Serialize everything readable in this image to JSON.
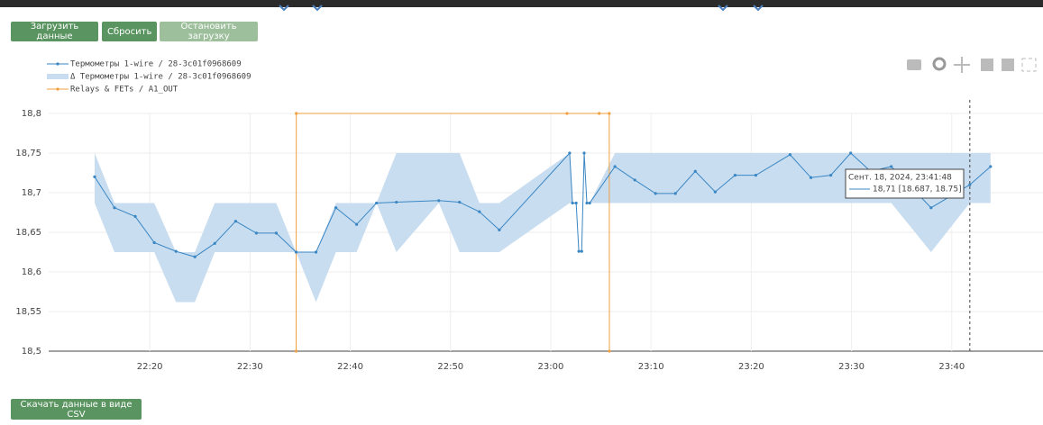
{
  "buttons": [
    "Загрузить данные",
    "Сбросить",
    "Остановить загрузку"
  ],
  "download_button": "Скачать данные в виде CSV",
  "tooltip": {
    "title": "Сент. 18, 2024, 23:41:48",
    "text": "18,71 [18.687, 18.75]"
  },
  "chart_data": {
    "type": "line",
    "xlim": [
      "22:09:55",
      "23:49:06"
    ],
    "xticks": [
      "22:20",
      "22:30",
      "22:40",
      "22:50",
      "23:00",
      "23:10",
      "23:20",
      "23:30",
      "23:40"
    ],
    "ylim": [
      18.5,
      18.8
    ],
    "yticks": [
      {
        "value": 18.5,
        "label": "18,5"
      },
      {
        "value": 18.55,
        "label": "18,55"
      },
      {
        "value": 18.6,
        "label": "18,6"
      },
      {
        "value": 18.65,
        "label": "18,65"
      },
      {
        "value": 18.7,
        "label": "18,7"
      },
      {
        "value": 18.75,
        "label": "18,75"
      },
      {
        "value": 18.8,
        "label": "18,8"
      }
    ],
    "y2lim": [
      0,
      1
    ],
    "grid": true,
    "series": [
      {
        "name": "Термометры 1-wire / 28-3c01f0968609",
        "color": "#3a87c4",
        "x": [
          "22:14:30",
          "22:16:29",
          "22:18:33",
          "22:20:27",
          "22:22:37",
          "22:24:30",
          "22:26:29",
          "22:28:34",
          "22:30:38",
          "22:32:37",
          "22:34:36",
          "22:36:35",
          "22:38:34",
          "22:40:38",
          "22:42:37",
          "22:44:36",
          "22:48:50",
          "22:50:54",
          "22:52:53",
          "22:54:52",
          "23:01:53",
          "23:02:10",
          "23:02:32",
          "23:02:48",
          "23:03:05",
          "23:03:20",
          "23:03:36",
          "23:03:53",
          "23:06:24",
          "23:08:23",
          "23:10:27",
          "23:12:26",
          "23:14:25",
          "23:16:24",
          "23:18:23",
          "23:20:27",
          "23:23:52",
          "23:25:57",
          "23:27:56",
          "23:29:55",
          "23:31:54",
          "23:33:58",
          "23:37:56",
          "23:41:48",
          "23:43:52"
        ],
        "values": [
          18.72,
          18.681,
          18.67,
          18.637,
          18.626,
          18.619,
          18.636,
          18.664,
          18.649,
          18.649,
          18.625,
          18.625,
          18.681,
          18.66,
          18.687,
          18.688,
          18.69,
          18.688,
          18.676,
          18.653,
          18.75,
          18.687,
          18.687,
          18.626,
          18.626,
          18.75,
          18.687,
          18.687,
          18.733,
          18.716,
          18.699,
          18.699,
          18.727,
          18.701,
          18.722,
          18.722,
          18.748,
          18.719,
          18.722,
          18.75,
          18.727,
          18.733,
          18.681,
          18.71,
          18.733
        ]
      },
      {
        "name": "Δ Термометры 1-wire / 28-3c01f0968609",
        "color": "#c9ddf0",
        "type": "band",
        "x": [
          "22:14:30",
          "22:16:29",
          "22:18:33",
          "22:20:27",
          "22:22:37",
          "22:24:30",
          "22:26:29",
          "22:28:34",
          "22:30:38",
          "22:32:37",
          "22:34:36",
          "22:36:35",
          "22:38:34",
          "22:40:38",
          "22:42:37",
          "22:44:36",
          "22:48:50",
          "22:50:54",
          "22:52:53",
          "22:54:52",
          "23:01:53",
          "23:02:10",
          "23:02:32",
          "23:02:48",
          "23:03:05",
          "23:03:20",
          "23:03:36",
          "23:03:53",
          "23:06:24",
          "23:08:23",
          "23:10:27",
          "23:12:26",
          "23:14:25",
          "23:16:24",
          "23:18:23",
          "23:20:27",
          "23:23:52",
          "23:25:57",
          "23:27:56",
          "23:29:55",
          "23:31:54",
          "23:33:58",
          "23:37:56",
          "23:41:48",
          "23:43:52"
        ],
        "low": [
          18.687,
          18.625,
          18.625,
          18.625,
          18.562,
          18.562,
          18.625,
          18.625,
          18.625,
          18.625,
          18.625,
          18.562,
          18.625,
          18.625,
          18.687,
          18.625,
          18.687,
          18.625,
          18.625,
          18.625,
          18.687,
          18.687,
          18.687,
          18.687,
          18.687,
          18.687,
          18.687,
          18.687,
          18.687,
          18.687,
          18.687,
          18.687,
          18.687,
          18.687,
          18.687,
          18.687,
          18.687,
          18.687,
          18.687,
          18.687,
          18.687,
          18.687,
          18.625,
          18.687,
          18.687
        ],
        "high": [
          18.75,
          18.687,
          18.687,
          18.687,
          18.625,
          18.625,
          18.687,
          18.687,
          18.687,
          18.687,
          18.625,
          18.625,
          18.687,
          18.687,
          18.687,
          18.75,
          18.75,
          18.75,
          18.687,
          18.687,
          18.75,
          18.687,
          18.687,
          18.687,
          18.687,
          18.687,
          18.687,
          18.687,
          18.75,
          18.75,
          18.75,
          18.75,
          18.75,
          18.75,
          18.75,
          18.75,
          18.75,
          18.75,
          18.75,
          18.75,
          18.75,
          18.75,
          18.75,
          18.75,
          18.75
        ]
      },
      {
        "name": "Relays & FETs / A1_OUT",
        "color": "#f0a040",
        "axis": "y2",
        "x": [
          "22:34:36",
          "22:34:37",
          "23:01:37",
          "23:04:50",
          "23:05:50",
          "23:05:51"
        ],
        "values": [
          0,
          1,
          1,
          1,
          1,
          0
        ]
      }
    ]
  }
}
